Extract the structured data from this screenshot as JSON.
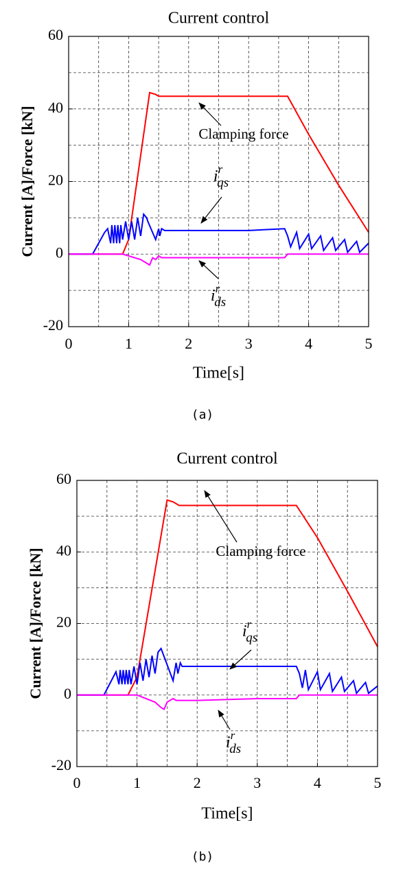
{
  "chart_data": [
    {
      "type": "line",
      "title": "Current control",
      "xlabel": "Time[s]",
      "ylabel": "Current [A]/Force [kN]",
      "caption": "(a)",
      "xlim": [
        0,
        5
      ],
      "xticks": [
        0,
        1,
        2,
        3,
        4,
        5
      ],
      "ylim": [
        -20,
        60
      ],
      "yticks": [
        -20,
        0,
        20,
        40,
        60
      ],
      "grid": true,
      "series": [
        {
          "name": "Clamping force",
          "color": "#ff0000",
          "x": [
            0,
            0.5,
            0.9,
            1.0,
            1.35,
            1.45,
            1.5,
            2,
            3,
            3.65,
            4,
            4.5,
            5
          ],
          "values": [
            0,
            0,
            0,
            4,
            44.5,
            44,
            43.5,
            43.5,
            43.5,
            43.5,
            33,
            19,
            6
          ]
        },
        {
          "name": "i",
          "name_sup": "r",
          "name_sub": "qs",
          "color": "#0000ff",
          "x": [
            0,
            0.4,
            0.6,
            0.65,
            0.7,
            0.72,
            0.75,
            0.77,
            0.8,
            0.82,
            0.85,
            0.87,
            0.9,
            0.95,
            1.0,
            1.05,
            1.1,
            1.15,
            1.2,
            1.25,
            1.3,
            1.32,
            1.45,
            1.5,
            1.52,
            1.55,
            1.6,
            2,
            3,
            3.6,
            3.65,
            3.7,
            3.8,
            3.85,
            4.0,
            4.05,
            4.2,
            4.25,
            4.4,
            4.45,
            4.6,
            4.65,
            4.8,
            4.85,
            5
          ],
          "values": [
            0,
            0,
            6,
            7,
            3,
            8,
            3,
            8,
            3,
            8,
            3,
            8,
            4,
            9,
            4,
            9,
            4,
            10,
            5,
            11,
            10,
            9,
            4,
            7,
            5,
            7,
            6.5,
            6.5,
            6.5,
            7,
            5,
            2,
            6,
            1.5,
            5.5,
            1.5,
            5,
            1,
            4.5,
            1,
            4,
            0.5,
            3.5,
            0.5,
            3
          ]
        },
        {
          "name": "i",
          "name_sup": "r",
          "name_sub": "ds",
          "color": "#ff00ff",
          "x": [
            0,
            0.9,
            1.2,
            1.3,
            1.35,
            1.4,
            1.45,
            1.5,
            1.55,
            2,
            3,
            3.6,
            3.65,
            4,
            5
          ],
          "values": [
            0,
            0,
            -1.5,
            -2.5,
            -3,
            -1,
            -1.5,
            -0.5,
            -1,
            -1,
            -1,
            -1,
            0,
            0,
            0
          ]
        }
      ]
    },
    {
      "type": "line",
      "title": "Current control",
      "xlabel": "Time[s]",
      "ylabel": "Current [A]/Force [kN]",
      "caption": "(b)",
      "xlim": [
        0,
        5
      ],
      "xticks": [
        0,
        1,
        2,
        3,
        4,
        5
      ],
      "ylim": [
        -20,
        60
      ],
      "yticks": [
        -20,
        0,
        20,
        40,
        60
      ],
      "grid": true,
      "series": [
        {
          "name": "Clamping force",
          "color": "#ff0000",
          "x": [
            0,
            0.5,
            0.85,
            1.0,
            1.5,
            1.6,
            1.7,
            2,
            3,
            3.65,
            4,
            4.5,
            5
          ],
          "values": [
            0,
            0,
            0,
            5,
            54.5,
            54,
            53,
            53,
            53,
            53,
            44,
            29,
            13.5
          ]
        },
        {
          "name": "i",
          "name_sup": "r",
          "name_sub": "qs",
          "color": "#0000ff",
          "x": [
            0,
            0.45,
            0.65,
            0.7,
            0.72,
            0.75,
            0.77,
            0.8,
            0.82,
            0.85,
            0.87,
            0.9,
            0.95,
            1.0,
            1.05,
            1.1,
            1.15,
            1.2,
            1.25,
            1.3,
            1.35,
            1.4,
            1.6,
            1.65,
            1.68,
            1.72,
            1.75,
            2,
            3,
            3.65,
            3.7,
            3.75,
            3.8,
            3.85,
            4.0,
            4.05,
            4.2,
            4.25,
            4.4,
            4.45,
            4.6,
            4.65,
            4.8,
            4.85,
            5
          ],
          "values": [
            0,
            0,
            6.5,
            3,
            7,
            3,
            7,
            3,
            7,
            3,
            7,
            3,
            8,
            3,
            9,
            4,
            10,
            5,
            11,
            6,
            12,
            13,
            4,
            9,
            6,
            9,
            8,
            8,
            8,
            8,
            6,
            2,
            7,
            1.5,
            6.5,
            1.5,
            6,
            1,
            5,
            1,
            4,
            0.5,
            3.5,
            0.5,
            2.5
          ]
        },
        {
          "name": "i",
          "name_sup": "r",
          "name_sub": "ds",
          "color": "#ff00ff",
          "x": [
            0,
            1.0,
            1.3,
            1.4,
            1.45,
            1.5,
            1.55,
            1.6,
            1.65,
            2,
            3,
            3.65,
            3.7,
            4,
            5
          ],
          "values": [
            0,
            0,
            -2,
            -3.5,
            -4,
            -2,
            -1.5,
            -1,
            -1.5,
            -1.5,
            -1,
            -1,
            0,
            0,
            0
          ]
        }
      ]
    }
  ]
}
